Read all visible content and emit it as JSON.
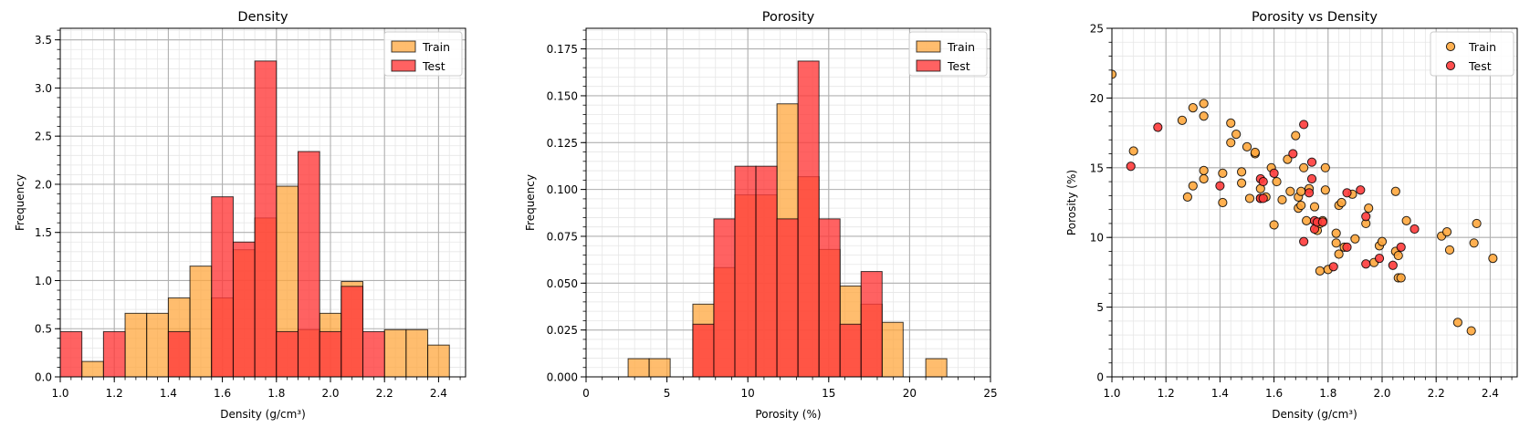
{
  "colors": {
    "train": "#ffa73d",
    "test": "#ff3b3b",
    "overlap": "#ff4e1b"
  },
  "chart_data": [
    {
      "type": "bar",
      "title": "Density",
      "xlabel": "Density (g/cm³)",
      "ylabel": "Frequency",
      "xlim": [
        1.0,
        2.5
      ],
      "ylim": [
        0,
        3.62
      ],
      "xticks": [
        "1.0",
        "1.2",
        "1.4",
        "1.6",
        "1.8",
        "2.0",
        "2.2",
        "2.4"
      ],
      "yticks": [
        "0.0",
        "0.5",
        "1.0",
        "1.5",
        "2.0",
        "2.5",
        "3.0",
        "3.5"
      ],
      "grid": true,
      "legend": "top-right",
      "series": [
        {
          "name": "Train",
          "bins": [
            [
              1.08,
              1.16,
              0.16
            ],
            [
              1.24,
              1.32,
              0.66
            ],
            [
              1.32,
              1.4,
              0.66
            ],
            [
              1.4,
              1.48,
              0.82
            ],
            [
              1.48,
              1.56,
              1.15
            ],
            [
              1.56,
              1.64,
              0.82
            ],
            [
              1.64,
              1.72,
              1.32
            ],
            [
              1.72,
              1.8,
              1.65
            ],
            [
              1.8,
              1.88,
              1.98
            ],
            [
              1.88,
              1.96,
              0.49
            ],
            [
              1.96,
              2.04,
              0.66
            ],
            [
              2.04,
              2.12,
              0.99
            ],
            [
              2.2,
              2.28,
              0.49
            ],
            [
              2.28,
              2.36,
              0.49
            ],
            [
              2.36,
              2.44,
              0.33
            ]
          ]
        },
        {
          "name": "Test",
          "bins": [
            [
              1.0,
              1.08,
              0.47
            ],
            [
              1.16,
              1.24,
              0.47
            ],
            [
              1.4,
              1.48,
              0.47
            ],
            [
              1.56,
              1.64,
              1.87
            ],
            [
              1.64,
              1.72,
              1.4
            ],
            [
              1.72,
              1.8,
              3.28
            ],
            [
              1.8,
              1.88,
              0.47
            ],
            [
              1.88,
              1.96,
              2.34
            ],
            [
              1.96,
              2.04,
              0.47
            ],
            [
              2.04,
              2.12,
              0.94
            ],
            [
              2.12,
              2.2,
              0.47
            ]
          ]
        }
      ]
    },
    {
      "type": "bar",
      "title": "Porosity",
      "xlabel": "Porosity (%)",
      "ylabel": "Frequency",
      "xlim": [
        0,
        25
      ],
      "ylim": [
        0,
        0.186
      ],
      "xticks": [
        "0",
        "5",
        "10",
        "15",
        "20",
        "25"
      ],
      "yticks": [
        "0.000",
        "0.025",
        "0.050",
        "0.075",
        "0.100",
        "0.125",
        "0.150",
        "0.175"
      ],
      "grid": true,
      "legend": "top-right",
      "series": [
        {
          "name": "Train",
          "bins": [
            [
              2.6,
              3.9,
              0.0097
            ],
            [
              3.9,
              5.2,
              0.0097
            ],
            [
              6.6,
              7.9,
              0.0388
            ],
            [
              7.9,
              9.2,
              0.0583
            ],
            [
              9.2,
              10.5,
              0.0971
            ],
            [
              10.5,
              11.8,
              0.0971
            ],
            [
              11.8,
              13.1,
              0.1457
            ],
            [
              13.1,
              14.4,
              0.1068
            ],
            [
              14.4,
              15.7,
              0.068
            ],
            [
              15.7,
              17.0,
              0.0485
            ],
            [
              17.0,
              18.3,
              0.0388
            ],
            [
              18.3,
              19.6,
              0.0291
            ],
            [
              21.0,
              22.3,
              0.0097
            ]
          ]
        },
        {
          "name": "Test",
          "bins": [
            [
              6.6,
              7.9,
              0.0281
            ],
            [
              7.9,
              9.2,
              0.0843
            ],
            [
              9.2,
              10.5,
              0.1124
            ],
            [
              10.5,
              11.8,
              0.1124
            ],
            [
              11.8,
              13.1,
              0.0843
            ],
            [
              13.1,
              14.4,
              0.1685
            ],
            [
              14.4,
              15.7,
              0.0843
            ],
            [
              15.7,
              17.0,
              0.0281
            ],
            [
              17.0,
              18.3,
              0.0562
            ]
          ]
        }
      ]
    },
    {
      "type": "scatter",
      "title": "Porosity vs Density",
      "xlabel": "Density (g/cm³)",
      "ylabel": "Porosity (%)",
      "xlim": [
        1.0,
        2.5
      ],
      "ylim": [
        0,
        25
      ],
      "xticks": [
        "1.0",
        "1.2",
        "1.4",
        "1.6",
        "1.8",
        "2.0",
        "2.2",
        "2.4"
      ],
      "yticks": [
        "0",
        "5",
        "10",
        "15",
        "20",
        "25"
      ],
      "grid": true,
      "legend": "top-right",
      "series": [
        {
          "name": "Train",
          "points": [
            [
              1.0,
              21.7
            ],
            [
              1.08,
              16.2
            ],
            [
              1.26,
              18.4
            ],
            [
              1.28,
              12.9
            ],
            [
              1.3,
              13.7
            ],
            [
              1.3,
              19.3
            ],
            [
              1.34,
              19.6
            ],
            [
              1.34,
              18.7
            ],
            [
              1.34,
              14.8
            ],
            [
              1.34,
              14.2
            ],
            [
              1.41,
              12.5
            ],
            [
              1.41,
              14.6
            ],
            [
              1.44,
              16.8
            ],
            [
              1.44,
              18.2
            ],
            [
              1.46,
              17.4
            ],
            [
              1.48,
              14.7
            ],
            [
              1.48,
              13.9
            ],
            [
              1.5,
              16.5
            ],
            [
              1.51,
              12.8
            ],
            [
              1.53,
              16.0
            ],
            [
              1.53,
              16.1
            ],
            [
              1.55,
              13.5
            ],
            [
              1.55,
              12.8
            ],
            [
              1.57,
              12.9
            ],
            [
              1.59,
              15.0
            ],
            [
              1.6,
              10.9
            ],
            [
              1.61,
              14.0
            ],
            [
              1.63,
              12.7
            ],
            [
              1.65,
              15.6
            ],
            [
              1.66,
              13.3
            ],
            [
              1.68,
              17.3
            ],
            [
              1.69,
              12.9
            ],
            [
              1.69,
              12.1
            ],
            [
              1.7,
              12.3
            ],
            [
              1.7,
              13.3
            ],
            [
              1.71,
              15.0
            ],
            [
              1.72,
              11.2
            ],
            [
              1.73,
              13.5
            ],
            [
              1.75,
              12.2
            ],
            [
              1.76,
              10.5
            ],
            [
              1.77,
              11.0
            ],
            [
              1.77,
              7.6
            ],
            [
              1.78,
              11.2
            ],
            [
              1.79,
              13.4
            ],
            [
              1.79,
              15.0
            ],
            [
              1.8,
              7.7
            ],
            [
              1.83,
              10.3
            ],
            [
              1.83,
              9.6
            ],
            [
              1.84,
              12.3
            ],
            [
              1.84,
              8.8
            ],
            [
              1.85,
              12.5
            ],
            [
              1.86,
              9.3
            ],
            [
              1.89,
              13.1
            ],
            [
              1.9,
              9.9
            ],
            [
              1.94,
              11.0
            ],
            [
              1.95,
              12.1
            ],
            [
              1.97,
              8.2
            ],
            [
              1.99,
              9.4
            ],
            [
              2.0,
              9.7
            ],
            [
              2.05,
              9.0
            ],
            [
              2.05,
              13.3
            ],
            [
              2.06,
              7.1
            ],
            [
              2.06,
              8.7
            ],
            [
              2.07,
              7.1
            ],
            [
              2.09,
              11.2
            ],
            [
              2.22,
              10.1
            ],
            [
              2.24,
              10.4
            ],
            [
              2.25,
              9.1
            ],
            [
              2.28,
              3.9
            ],
            [
              2.33,
              3.3
            ],
            [
              2.34,
              9.6
            ],
            [
              2.35,
              11.0
            ],
            [
              2.41,
              8.5
            ]
          ]
        },
        {
          "name": "Test",
          "points": [
            [
              1.07,
              15.1
            ],
            [
              1.17,
              17.9
            ],
            [
              1.4,
              13.7
            ],
            [
              1.55,
              14.2
            ],
            [
              1.55,
              12.8
            ],
            [
              1.56,
              12.8
            ],
            [
              1.56,
              14.0
            ],
            [
              1.6,
              14.6
            ],
            [
              1.67,
              16.0
            ],
            [
              1.71,
              18.1
            ],
            [
              1.71,
              9.7
            ],
            [
              1.73,
              13.2
            ],
            [
              1.74,
              14.2
            ],
            [
              1.74,
              15.4
            ],
            [
              1.75,
              10.6
            ],
            [
              1.75,
              11.2
            ],
            [
              1.76,
              11.1
            ],
            [
              1.78,
              11.1
            ],
            [
              1.82,
              7.9
            ],
            [
              1.87,
              13.2
            ],
            [
              1.87,
              9.3
            ],
            [
              1.92,
              13.4
            ],
            [
              1.94,
              8.1
            ],
            [
              1.94,
              11.5
            ],
            [
              1.99,
              8.5
            ],
            [
              2.04,
              8.0
            ],
            [
              2.07,
              9.3
            ],
            [
              2.12,
              10.6
            ]
          ]
        }
      ]
    }
  ]
}
